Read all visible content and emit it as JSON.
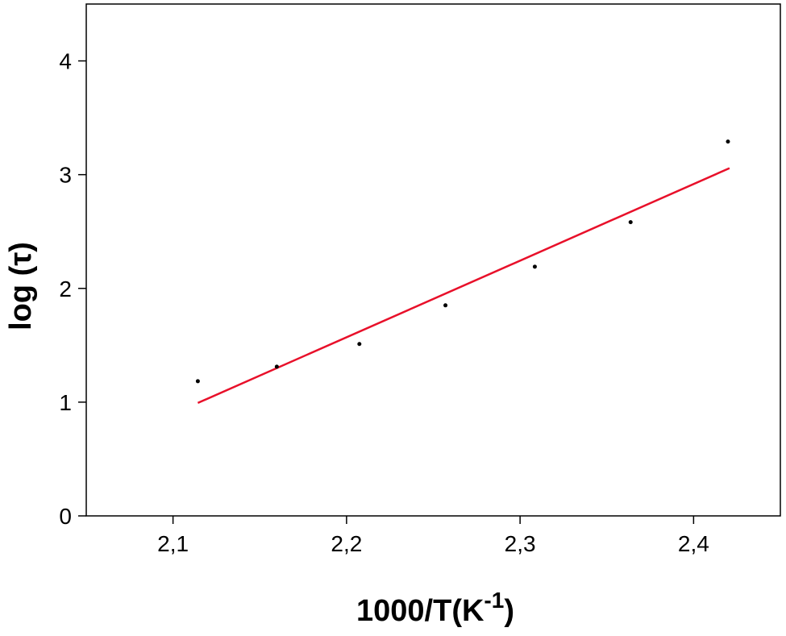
{
  "chart_data": {
    "type": "scatter",
    "xlabel": {
      "text": "1000/T(K",
      "superscript": "-1",
      "suffix": ")"
    },
    "ylabel": "log (τ)",
    "x": [
      2.1143,
      2.1598,
      2.2074,
      2.257,
      2.3085,
      2.3637,
      2.4198
    ],
    "values": [
      1.184,
      1.312,
      1.511,
      1.851,
      2.191,
      2.582,
      3.291
    ],
    "color": "#000000",
    "fit": {
      "x": [
        2.1143,
        2.4207
      ],
      "values": [
        0.993,
        3.057
      ],
      "color": "#e8102a"
    },
    "xlim": [
      2.05,
      2.45
    ],
    "xticks": [
      {
        "value": 2.1,
        "label": "2,1"
      },
      {
        "value": 2.2,
        "label": "2,2"
      },
      {
        "value": 2.3,
        "label": "2,3"
      },
      {
        "value": 2.4,
        "label": "2,4"
      }
    ],
    "ylim": [
      0,
      4.5
    ],
    "yticks": [
      0,
      1,
      2,
      3,
      4
    ]
  }
}
